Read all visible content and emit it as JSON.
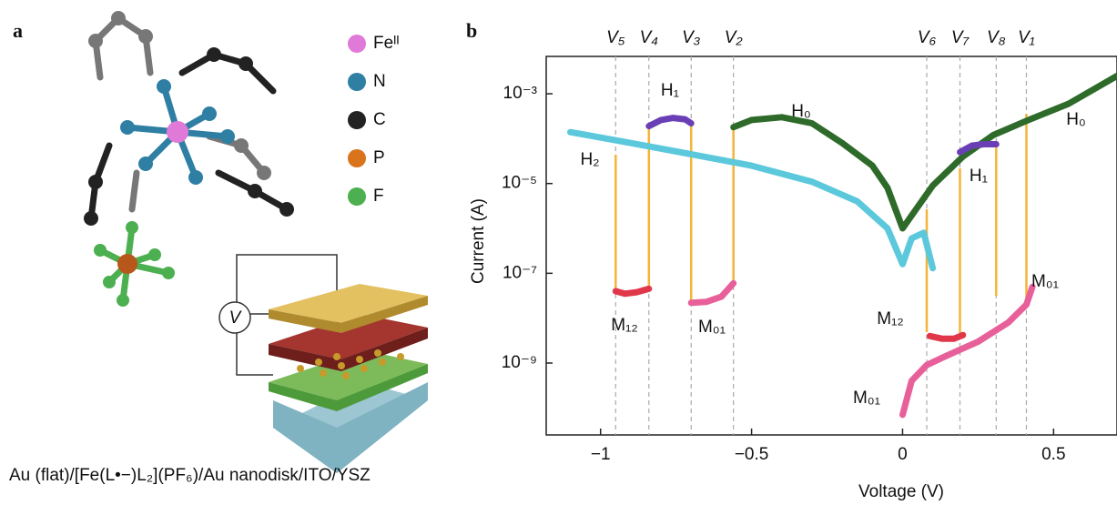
{
  "panel_a": {
    "label": "a",
    "legend": [
      {
        "label": "Feᴵᴵ",
        "color": "#e07ad8"
      },
      {
        "label": "N",
        "color": "#2e7fa3"
      },
      {
        "label": "C",
        "color": "#222222"
      },
      {
        "label": "P",
        "color": "#d9741c"
      },
      {
        "label": "F",
        "color": "#4caf50"
      }
    ],
    "meter": "V",
    "caption": "Au (flat)/[Fe(L•−)L₂](PF₆)/Au nanodisk/ITO/YSZ"
  },
  "chart_data": {
    "type": "line",
    "panel_label": "b",
    "ylog": true,
    "xlabel": "Voltage (V)",
    "ylabel": "Current (A)",
    "xlim": [
      -1.18,
      0.71
    ],
    "ylim": [
      2.5e-11,
      0.0068
    ],
    "xticks": [
      {
        "value": -1,
        "label": "−1"
      },
      {
        "value": -0.5,
        "label": "−0.5"
      },
      0,
      0.5
    ],
    "yticks": [
      {
        "value": 0.001,
        "label": "10⁻³"
      },
      {
        "value": 1e-05,
        "label": "10⁻⁵"
      },
      {
        "value": 1e-07,
        "label": "10⁻⁷"
      },
      {
        "value": 1e-09,
        "label": "10⁻⁹"
      }
    ],
    "markers": [
      {
        "label": "V₅",
        "value": -0.95
      },
      {
        "label": "V₄",
        "value": -0.84
      },
      {
        "label": "V₃",
        "value": -0.7
      },
      {
        "label": "V₂",
        "value": -0.56
      },
      {
        "label": "V₆",
        "value": 0.08
      },
      {
        "label": "V₇",
        "value": 0.19
      },
      {
        "label": "V₈",
        "value": 0.31
      },
      {
        "label": "V₁",
        "value": 0.41
      }
    ],
    "series": [
      {
        "color": "#5bc8dc",
        "x": [
          -1.1,
          -0.9,
          -0.7,
          -0.5,
          -0.3,
          -0.15,
          -0.05,
          0,
          0.03,
          0.07,
          0.1
        ],
        "values": [
          0.00014,
          8e-05,
          4.5e-05,
          2.5e-05,
          1.1e-05,
          4e-06,
          1e-06,
          1.6e-07,
          6e-07,
          8e-07,
          1.3e-07
        ]
      },
      {
        "color": "#2e6b2a",
        "x": [
          -0.56,
          -0.5,
          -0.4,
          -0.3,
          -0.2,
          -0.1,
          -0.05,
          0,
          0.05,
          0.1,
          0.2,
          0.3,
          0.41,
          0.55,
          0.71
        ],
        "values": [
          0.00018,
          0.00026,
          0.0003,
          0.00022,
          8e-05,
          2.5e-05,
          8e-06,
          1e-06,
          3e-06,
          9e-06,
          4e-05,
          0.00012,
          0.00025,
          0.0006,
          0.0025
        ]
      },
      {
        "color": "#6a3fb5",
        "x": [
          -0.84,
          -0.8,
          -0.76,
          -0.72,
          -0.7
        ],
        "values": [
          0.00019,
          0.00026,
          0.00029,
          0.00027,
          0.00022
        ]
      },
      {
        "color": "#6a3fb5",
        "x": [
          0.19,
          0.23,
          0.27,
          0.31
        ],
        "values": [
          5e-05,
          7e-05,
          7.5e-05,
          7.5e-05
        ]
      },
      {
        "color": "#e0384a",
        "x": [
          -0.95,
          -0.92,
          -0.88,
          -0.84
        ],
        "values": [
          4e-08,
          3.5e-08,
          3.8e-08,
          4.5e-08
        ]
      },
      {
        "color": "#e0384a",
        "x": [
          0.09,
          0.13,
          0.17,
          0.2
        ],
        "values": [
          4e-09,
          3.5e-09,
          3.5e-09,
          4.2e-09
        ]
      },
      {
        "color": "#e8609a",
        "x": [
          -0.7,
          -0.65,
          -0.6,
          -0.56
        ],
        "values": [
          2.2e-08,
          2.3e-08,
          3e-08,
          6e-08
        ]
      },
      {
        "color": "#e8609a",
        "x": [
          0,
          0.03,
          0.08,
          0.15,
          0.25,
          0.35,
          0.41,
          0.43
        ],
        "values": [
          7e-11,
          4e-10,
          9e-10,
          1.5e-09,
          3e-09,
          8e-09,
          2e-08,
          5e-08
        ]
      }
    ],
    "annotations": [
      {
        "text": "H₀",
        "color": "#2e6b2a"
      },
      {
        "text": "H₀",
        "color": "#2e6b2a"
      },
      {
        "text": "H₁",
        "color": "#6a3fb5"
      },
      {
        "text": "H₁",
        "color": "#6a3fb5"
      },
      {
        "text": "H₂",
        "color": "#3fb0c8"
      },
      {
        "text": "M₁₂",
        "color": "#e0384a"
      },
      {
        "text": "M₁₂",
        "color": "#e0384a"
      },
      {
        "text": "M₀₁",
        "color": "#e8609a"
      },
      {
        "text": "M₀₁",
        "color": "#e8609a"
      },
      {
        "text": "M₀₁",
        "color": "#e8609a"
      }
    ]
  }
}
